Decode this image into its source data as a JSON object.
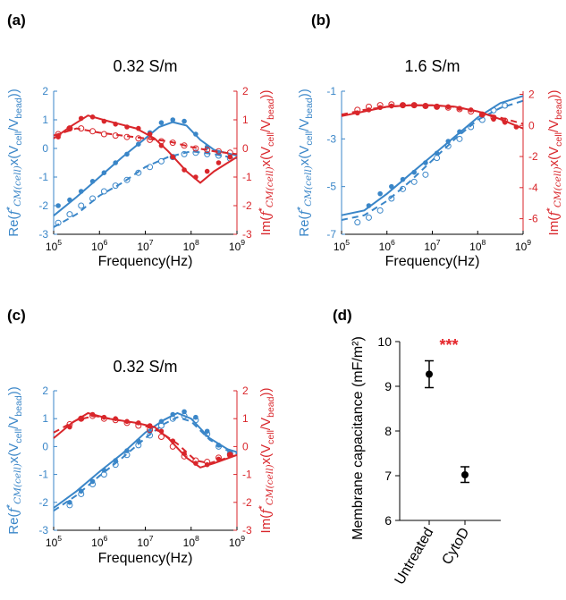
{
  "colors": {
    "left": "#3a86c8",
    "right": "#d9262b",
    "star": "#e5252a",
    "ink": "#000000"
  },
  "chart_data": [
    {
      "panel_label": "(a)",
      "type": "line",
      "title": "0.32 S/m",
      "xlabel": "Frequency(Hz)",
      "ylabel_left": "Re(f*CM(cell)x(Vcell/Vbead))",
      "ylabel_right": "Im(f*CM(cell)x(Vcell/Vbead))",
      "xscale": "log",
      "xlim": [
        100000,
        1000000000
      ],
      "xticks": [
        "10^5",
        "10^6",
        "10^7",
        "10^8",
        "10^9"
      ],
      "ylim_left": [
        -3,
        2
      ],
      "ylim_right": [
        -3,
        2
      ],
      "yticks_left": [
        "2",
        "1",
        "0",
        "-1",
        "-2",
        "-3"
      ],
      "yticks_right": [
        "2",
        "1",
        "0",
        "-1",
        "-2",
        "-3"
      ],
      "series": [
        {
          "axis": "left",
          "style": "solid",
          "marker": "filled",
          "color": "left",
          "fit": [
            [
              5,
              -2.35
            ],
            [
              5.5,
              -1.7
            ],
            [
              6,
              -1.0
            ],
            [
              6.5,
              -0.3
            ],
            [
              7,
              0.35
            ],
            [
              7.3,
              0.75
            ],
            [
              7.6,
              0.92
            ],
            [
              7.9,
              0.8
            ],
            [
              8.2,
              0.3
            ],
            [
              8.5,
              -0.05
            ],
            [
              9,
              -0.25
            ]
          ],
          "x": [
            5.1,
            5.35,
            5.6,
            5.85,
            6.1,
            6.35,
            6.6,
            6.85,
            7.1,
            7.35,
            7.6,
            7.85,
            8.1,
            8.35,
            8.6,
            8.85
          ],
          "values": [
            -2.0,
            -1.8,
            -1.5,
            -1.15,
            -0.85,
            -0.5,
            -0.2,
            0.15,
            0.55,
            0.9,
            1.0,
            0.95,
            0.5,
            0.05,
            -0.15,
            -0.3
          ]
        },
        {
          "axis": "left",
          "style": "dashed",
          "marker": "open",
          "color": "left",
          "fit": [
            [
              5,
              -2.75
            ],
            [
              5.5,
              -2.3
            ],
            [
              6,
              -1.65
            ],
            [
              6.5,
              -1.2
            ],
            [
              7,
              -0.65
            ],
            [
              7.5,
              -0.3
            ],
            [
              8,
              -0.1
            ],
            [
              8.5,
              -0.2
            ],
            [
              9,
              -0.35
            ]
          ],
          "x": [
            5.1,
            5.35,
            5.6,
            5.85,
            6.1,
            6.35,
            6.6,
            6.85,
            7.1,
            7.35,
            7.6,
            7.85,
            8.1,
            8.35,
            8.6,
            8.85
          ],
          "values": [
            -2.6,
            -2.3,
            -2.0,
            -1.75,
            -1.5,
            -1.3,
            -1.1,
            -0.85,
            -0.65,
            -0.45,
            -0.3,
            -0.2,
            -0.15,
            -0.2,
            -0.25,
            -0.35
          ]
        },
        {
          "axis": "right",
          "style": "solid",
          "marker": "filled",
          "color": "right",
          "fit": [
            [
              5,
              0.35
            ],
            [
              5.4,
              0.8
            ],
            [
              5.75,
              1.15
            ],
            [
              6.2,
              0.95
            ],
            [
              6.8,
              0.7
            ],
            [
              7.2,
              0.35
            ],
            [
              7.5,
              -0.1
            ],
            [
              7.9,
              -0.8
            ],
            [
              8.2,
              -1.2
            ],
            [
              8.5,
              -0.8
            ],
            [
              9,
              -0.3
            ]
          ],
          "x": [
            5.1,
            5.35,
            5.6,
            5.85,
            6.1,
            6.35,
            6.6,
            6.85,
            7.1,
            7.35,
            7.6,
            7.85,
            8.1,
            8.35,
            8.6,
            8.85
          ],
          "values": [
            0.4,
            0.7,
            1.05,
            1.1,
            0.95,
            0.85,
            0.75,
            0.7,
            0.5,
            0.1,
            -0.3,
            -0.75,
            -1.0,
            -0.8,
            -0.5,
            -0.3
          ]
        },
        {
          "axis": "right",
          "style": "dashed",
          "marker": "open",
          "color": "right",
          "fit": [
            [
              5,
              0.45
            ],
            [
              5.5,
              0.7
            ],
            [
              6,
              0.55
            ],
            [
              6.5,
              0.45
            ],
            [
              7,
              0.35
            ],
            [
              7.5,
              0.25
            ],
            [
              8,
              0.05
            ],
            [
              8.5,
              -0.1
            ],
            [
              9,
              -0.2
            ]
          ],
          "x": [
            5.1,
            5.35,
            5.6,
            5.85,
            6.1,
            6.35,
            6.6,
            6.85,
            7.1,
            7.35,
            7.6,
            7.85,
            8.1,
            8.35,
            8.6,
            8.85
          ],
          "values": [
            0.5,
            0.7,
            0.7,
            0.6,
            0.5,
            0.45,
            0.4,
            0.35,
            0.3,
            0.25,
            0.2,
            0.1,
            0.0,
            -0.05,
            -0.1,
            -0.15
          ]
        }
      ]
    },
    {
      "panel_label": "(b)",
      "type": "line",
      "title": "1.6 S/m",
      "xlabel": "Frequency(Hz)",
      "ylabel_left": "Re(f*CM(cell)x(Vcell/Vbead))",
      "ylabel_right": "Im(f*CM(cell)x(Vcell/Vbead))",
      "xscale": "log",
      "xlim": [
        100000,
        1000000000
      ],
      "xticks": [
        "10^5",
        "10^6",
        "10^7",
        "10^8",
        "10^9"
      ],
      "ylim_left": [
        -7,
        -1
      ],
      "ylim_right": [
        -7,
        2.2
      ],
      "yticks_left": [
        "-1",
        "-3",
        "-5",
        "-7"
      ],
      "yticks_right": [
        "2",
        "0",
        "-2",
        "-4",
        "-6"
      ],
      "series": [
        {
          "axis": "left",
          "style": "solid",
          "marker": "filled",
          "color": "left",
          "fit": [
            [
              5,
              -6.2
            ],
            [
              5.5,
              -6.0
            ],
            [
              6,
              -5.3
            ],
            [
              6.5,
              -4.5
            ],
            [
              7,
              -3.7
            ],
            [
              7.5,
              -2.9
            ],
            [
              8,
              -2.1
            ],
            [
              8.5,
              -1.5
            ],
            [
              9,
              -1.2
            ]
          ],
          "x": [
            5.6,
            5.85,
            6.1,
            6.35,
            6.6,
            6.85,
            7.1,
            7.35,
            7.6
          ],
          "values": [
            -5.8,
            -5.3,
            -5.0,
            -4.7,
            -4.4,
            -4.0,
            -3.6,
            -3.1,
            -2.7
          ]
        },
        {
          "axis": "left",
          "style": "dashed",
          "marker": "open",
          "color": "left",
          "fit": [
            [
              5,
              -6.4
            ],
            [
              5.5,
              -6.2
            ],
            [
              6,
              -5.6
            ],
            [
              6.5,
              -4.8
            ],
            [
              7,
              -3.9
            ],
            [
              7.5,
              -3.0
            ],
            [
              8,
              -2.2
            ],
            [
              8.5,
              -1.7
            ],
            [
              9,
              -1.4
            ]
          ],
          "x": [
            5.35,
            5.6,
            5.85,
            6.1,
            6.35,
            6.6,
            6.85,
            7.1,
            7.35,
            7.6,
            7.85,
            8.1,
            8.35,
            8.6
          ],
          "values": [
            -6.5,
            -6.3,
            -6.0,
            -5.5,
            -5.1,
            -4.8,
            -4.5,
            -3.8,
            -3.3,
            -3.0,
            -2.5,
            -2.2,
            -1.8,
            -1.6
          ]
        },
        {
          "axis": "right",
          "style": "solid",
          "marker": "filled",
          "color": "right",
          "fit": [
            [
              5,
              0.6
            ],
            [
              5.5,
              0.9
            ],
            [
              6,
              1.2
            ],
            [
              6.5,
              1.3
            ],
            [
              7,
              1.3
            ],
            [
              7.5,
              1.2
            ],
            [
              8,
              0.9
            ],
            [
              8.5,
              0.4
            ],
            [
              9,
              -0.2
            ]
          ],
          "x": [
            5.35,
            5.6,
            5.85,
            6.1,
            6.35,
            6.6,
            6.85,
            7.1,
            7.35,
            7.6,
            7.85,
            8.1,
            8.35,
            8.6,
            8.85
          ],
          "values": [
            0.8,
            1.0,
            1.15,
            1.25,
            1.3,
            1.3,
            1.25,
            1.2,
            1.2,
            1.1,
            1.0,
            0.7,
            0.4,
            0.2,
            -0.1
          ]
        },
        {
          "axis": "right",
          "style": "dashed",
          "marker": "open",
          "color": "right",
          "fit": [
            [
              5,
              0.7
            ],
            [
              5.5,
              1.0
            ],
            [
              6,
              1.2
            ],
            [
              6.5,
              1.3
            ],
            [
              7,
              1.3
            ],
            [
              7.5,
              1.2
            ],
            [
              8,
              0.9
            ],
            [
              8.5,
              0.5
            ],
            [
              9,
              0.1
            ]
          ],
          "x": [
            5.35,
            5.6,
            5.85,
            6.1,
            6.35,
            6.6,
            6.85,
            7.1,
            7.35,
            7.6,
            7.85,
            8.1,
            8.35,
            8.6
          ],
          "values": [
            1.0,
            1.2,
            1.3,
            1.35,
            1.3,
            1.3,
            1.25,
            1.2,
            1.15,
            1.05,
            0.9,
            0.7,
            0.5,
            0.3
          ]
        }
      ]
    },
    {
      "panel_label": "(c)",
      "type": "line",
      "title": "0.32 S/m",
      "xlabel": "Frequency(Hz)",
      "ylabel_left": "Re(f*CM(cell)x(Vcell/Vbead))",
      "ylabel_right": "Im(f*CM(cell)x(Vcell/Vbead))",
      "xscale": "log",
      "xlim": [
        100000,
        1000000000
      ],
      "xticks": [
        "10^5",
        "10^6",
        "10^7",
        "10^8",
        "10^9"
      ],
      "ylim_left": [
        -3,
        2
      ],
      "ylim_right": [
        -3,
        2
      ],
      "yticks_left": [
        "2",
        "1",
        "0",
        "-1",
        "-2",
        "-3"
      ],
      "yticks_right": [
        "2",
        "1",
        "0",
        "-1",
        "-2",
        "-3"
      ],
      "series": [
        {
          "axis": "left",
          "style": "solid",
          "marker": "filled",
          "color": "left",
          "fit": [
            [
              5,
              -2.2
            ],
            [
              5.5,
              -1.6
            ],
            [
              6,
              -0.9
            ],
            [
              6.5,
              -0.25
            ],
            [
              7,
              0.5
            ],
            [
              7.4,
              0.95
            ],
            [
              7.7,
              1.2
            ],
            [
              8,
              1.0
            ],
            [
              8.4,
              0.3
            ],
            [
              8.8,
              -0.1
            ],
            [
              9,
              -0.2
            ]
          ],
          "x": [
            5.35,
            5.6,
            5.85,
            6.1,
            6.35,
            6.6,
            6.85,
            7.1,
            7.35,
            7.6,
            7.85,
            8.1,
            8.35,
            8.6,
            8.85
          ],
          "values": [
            -2.0,
            -1.6,
            -1.25,
            -0.85,
            -0.5,
            -0.15,
            0.2,
            0.55,
            0.9,
            1.15,
            1.25,
            1.05,
            0.55,
            0.05,
            -0.2
          ]
        },
        {
          "axis": "left",
          "style": "dashed",
          "marker": "open",
          "color": "left",
          "fit": [
            [
              5,
              -2.3
            ],
            [
              5.5,
              -1.75
            ],
            [
              6,
              -1.05
            ],
            [
              6.5,
              -0.4
            ],
            [
              7,
              0.3
            ],
            [
              7.4,
              0.8
            ],
            [
              7.7,
              1.05
            ],
            [
              8,
              0.9
            ],
            [
              8.4,
              0.25
            ],
            [
              8.8,
              -0.15
            ],
            [
              9,
              -0.25
            ]
          ],
          "x": [
            5.35,
            5.6,
            5.85,
            6.1,
            6.35,
            6.6,
            6.85,
            7.1,
            7.35,
            7.6,
            7.85,
            8.1,
            8.35,
            8.6,
            8.85
          ],
          "values": [
            -2.1,
            -1.7,
            -1.35,
            -1.0,
            -0.65,
            -0.3,
            0.05,
            0.4,
            0.75,
            1.0,
            1.1,
            0.95,
            0.45,
            0.0,
            -0.25
          ]
        },
        {
          "axis": "right",
          "style": "solid",
          "marker": "filled",
          "color": "right",
          "fit": [
            [
              5,
              0.3
            ],
            [
              5.4,
              0.85
            ],
            [
              5.75,
              1.2
            ],
            [
              6.2,
              1.0
            ],
            [
              6.8,
              0.85
            ],
            [
              7.2,
              0.7
            ],
            [
              7.5,
              0.3
            ],
            [
              7.9,
              -0.4
            ],
            [
              8.2,
              -0.75
            ],
            [
              8.5,
              -0.6
            ],
            [
              9,
              -0.3
            ]
          ],
          "x": [
            5.35,
            5.6,
            5.85,
            6.1,
            6.35,
            6.6,
            6.85,
            7.1,
            7.35,
            7.6,
            7.85,
            8.1,
            8.35,
            8.6,
            8.85
          ],
          "values": [
            0.7,
            1.0,
            1.15,
            1.05,
            1.0,
            0.9,
            0.85,
            0.75,
            0.55,
            0.2,
            -0.25,
            -0.6,
            -0.65,
            -0.45,
            -0.3
          ]
        },
        {
          "axis": "right",
          "style": "dashed",
          "marker": "open",
          "color": "right",
          "fit": [
            [
              5,
              0.5
            ],
            [
              5.5,
              0.95
            ],
            [
              5.9,
              1.1
            ],
            [
              6.4,
              0.95
            ],
            [
              6.9,
              0.8
            ],
            [
              7.3,
              0.55
            ],
            [
              7.7,
              0.1
            ],
            [
              8.1,
              -0.5
            ],
            [
              8.4,
              -0.6
            ],
            [
              8.7,
              -0.45
            ],
            [
              9,
              -0.3
            ]
          ],
          "x": [
            5.35,
            5.6,
            5.85,
            6.1,
            6.35,
            6.6,
            6.85,
            7.1,
            7.35,
            7.6,
            7.85,
            8.1,
            8.35,
            8.6,
            8.85
          ],
          "values": [
            0.8,
            1.0,
            1.1,
            1.0,
            0.95,
            0.85,
            0.75,
            0.6,
            0.35,
            0.0,
            -0.35,
            -0.5,
            -0.55,
            -0.4,
            -0.3
          ]
        }
      ]
    },
    {
      "panel_label": "(d)",
      "type": "scatter",
      "ylabel": "Membrane capacitance (mF/m²)",
      "categories": [
        "Untreated",
        "CytoD"
      ],
      "values": [
        9.27,
        7.02
      ],
      "error_low": [
        8.97,
        6.85
      ],
      "error_high": [
        9.57,
        7.2
      ],
      "ylim": [
        6,
        10
      ],
      "yticks": [
        "10",
        "9",
        "8",
        "7",
        "6"
      ],
      "annotation": "***"
    }
  ]
}
